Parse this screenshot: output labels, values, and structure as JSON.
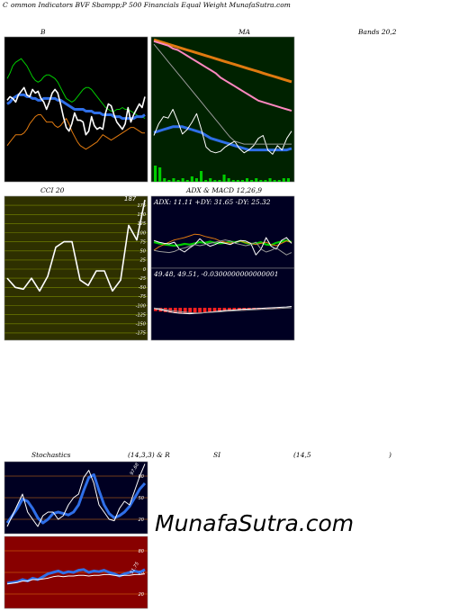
{
  "header": {
    "c_letter": "C",
    "title": "ommon  Indicators BVF Sbampp;P 500  Financials Equal Weight MunafaSutra.com"
  },
  "watermark": "MunafaSutra.com",
  "colors": {
    "panel_black": "#000000",
    "panel_green": "#002200",
    "panel_navy": "#000022",
    "panel_olive": "#2e3000",
    "panel_red": "#880000",
    "white": "#ffffff",
    "green": "#00cc00",
    "blue": "#2f6fe8",
    "orange": "#e07a10",
    "pink": "#ff88c0",
    "red": "#ff2020"
  },
  "chart_data": [
    {
      "id": "bbands",
      "type": "line",
      "title_left": "B",
      "title_right": "Bands 20,2",
      "x": [
        1,
        2,
        3,
        4,
        5,
        6,
        7,
        8,
        9,
        10,
        11,
        12,
        13,
        14,
        15,
        16,
        17,
        18,
        19,
        20,
        21,
        22,
        23,
        24,
        25,
        26,
        27,
        28,
        29,
        30,
        31,
        32,
        33,
        34,
        35,
        36,
        37,
        38,
        39,
        40,
        41,
        42,
        43,
        44,
        45,
        46,
        47,
        48,
        49,
        50
      ],
      "series": [
        {
          "role": "upper",
          "color": "green",
          "values": [
            57,
            60,
            64,
            66,
            67,
            68,
            66,
            64,
            61,
            58,
            56,
            55,
            56,
            58,
            59,
            59,
            58,
            57,
            55,
            52,
            49,
            46,
            45,
            44,
            45,
            47,
            49,
            51,
            52,
            52,
            51,
            49,
            47,
            45,
            43,
            41,
            40,
            39,
            39,
            40,
            40,
            41,
            40,
            40,
            39,
            38,
            37,
            36,
            36,
            35
          ]
        },
        {
          "role": "middle",
          "color": "blue",
          "values": [
            43,
            44,
            46,
            47,
            48,
            48,
            48,
            47,
            47,
            46,
            46,
            45,
            45,
            46,
            46,
            46,
            46,
            46,
            45,
            45,
            44,
            43,
            42,
            41,
            40,
            40,
            40,
            40,
            39,
            39,
            39,
            38,
            38,
            38,
            37,
            37,
            37,
            37,
            36,
            36,
            36,
            35,
            35,
            35,
            35,
            35,
            36,
            36,
            36,
            37
          ]
        },
        {
          "role": "lower",
          "color": "orange",
          "values": [
            20,
            22,
            24,
            26,
            26,
            26,
            27,
            29,
            32,
            34,
            36,
            37,
            37,
            35,
            33,
            33,
            33,
            31,
            30,
            31,
            33,
            35,
            32,
            28,
            25,
            22,
            20,
            19,
            18,
            19,
            20,
            21,
            22,
            24,
            26,
            25,
            24,
            23,
            24,
            25,
            26,
            27,
            28,
            29,
            30,
            30,
            29,
            28,
            27,
            27
          ]
        },
        {
          "role": "close",
          "color": "white",
          "values": [
            45,
            47,
            46,
            44,
            48,
            50,
            52,
            48,
            47,
            51,
            49,
            50,
            46,
            44,
            40,
            44,
            49,
            51,
            49,
            43,
            36,
            30,
            28,
            32,
            38,
            34,
            34,
            33,
            26,
            28,
            36,
            31,
            29,
            30,
            29,
            38,
            43,
            42,
            37,
            33,
            31,
            29,
            32,
            41,
            33,
            37,
            40,
            43,
            41,
            47
          ]
        }
      ],
      "ylim": [
        0,
        80
      ]
    },
    {
      "id": "ma",
      "type": "line",
      "title": "MA",
      "ylim": [
        0,
        100
      ],
      "series": [
        {
          "color": "orange",
          "values": [
            98,
            97,
            96,
            95,
            94,
            93,
            92,
            91,
            90,
            89,
            88,
            87,
            86,
            85,
            84,
            83,
            82,
            81,
            80,
            79,
            78,
            77,
            76,
            75,
            74,
            73,
            72,
            71,
            70,
            69
          ]
        },
        {
          "color": "pink",
          "values": [
            97,
            96,
            95,
            94,
            92,
            91,
            89,
            87,
            85,
            83,
            81,
            79,
            77,
            75,
            72,
            70,
            68,
            66,
            64,
            62,
            60,
            58,
            56,
            55,
            54,
            53,
            52,
            51,
            50,
            49
          ]
        },
        {
          "color": "blue",
          "values": [
            34,
            35,
            36,
            37,
            38,
            38,
            38,
            37,
            36,
            35,
            34,
            32,
            30,
            29,
            28,
            27,
            26,
            25,
            24,
            23,
            22,
            22,
            22,
            22,
            22,
            22,
            22,
            22,
            22,
            23
          ]
        },
        {
          "color": "white",
          "values": [
            32,
            40,
            45,
            44,
            50,
            42,
            33,
            36,
            41,
            47,
            36,
            24,
            21,
            20,
            21,
            24,
            26,
            28,
            23,
            20,
            22,
            25,
            30,
            32,
            22,
            19,
            25,
            22,
            30,
            35
          ]
        },
        {
          "color": "gray",
          "values": [
            95,
            91,
            87,
            83,
            79,
            75,
            71,
            67,
            63,
            59,
            55,
            51,
            47,
            43,
            39,
            35,
            31,
            28,
            27,
            26,
            26,
            26,
            26,
            26,
            26,
            26,
            26,
            26,
            26,
            26
          ]
        }
      ],
      "volume": [
        9,
        8,
        2,
        1,
        2,
        1,
        2,
        1,
        3,
        2,
        6,
        1,
        2,
        1,
        1,
        4,
        2,
        1,
        1,
        1,
        2,
        1,
        2,
        1,
        1,
        2,
        1,
        1,
        2,
        2
      ]
    },
    {
      "id": "cci",
      "type": "line",
      "title": "CCI 20",
      "last_label": "187",
      "ticks": [
        "175",
        "150",
        "125",
        "100",
        "75",
        "50",
        "25",
        "0",
        "-25",
        "-50",
        "-75",
        "-100",
        "-125",
        "-150",
        "-175"
      ],
      "tick_values": [
        175,
        150,
        125,
        100,
        75,
        50,
        25,
        0,
        -25,
        -50,
        -75,
        -100,
        -125,
        -150,
        -175
      ],
      "ylim": [
        -195,
        200
      ],
      "values": [
        -25,
        -50,
        -55,
        -25,
        -60,
        -20,
        60,
        75,
        75,
        -30,
        -45,
        -5,
        -5,
        -60,
        -30,
        120,
        80,
        190
      ]
    },
    {
      "id": "adx",
      "type": "line",
      "title": "ADX  & MACD 12,26,9",
      "stats": "ADX: 11.11  +DY: 31.65 -DY: 25.32",
      "ylim": [
        0,
        100
      ],
      "series": [
        {
          "color": "green",
          "values": [
            42,
            40,
            38,
            37,
            36,
            37,
            39,
            38,
            40,
            42,
            41,
            43,
            41,
            40,
            41,
            43,
            42,
            44,
            41,
            39,
            40,
            42,
            38,
            37,
            41,
            43,
            45,
            42
          ]
        },
        {
          "color": "orange",
          "values": [
            28,
            34,
            38,
            42,
            46,
            48,
            50,
            53,
            56,
            55,
            52,
            50,
            48,
            44,
            42,
            40,
            42,
            44,
            41,
            40,
            38,
            40,
            42,
            38,
            36,
            40,
            44,
            42
          ]
        },
        {
          "color": "white",
          "values": [
            45,
            42,
            40,
            39,
            42,
            30,
            25,
            32,
            38,
            48,
            40,
            35,
            38,
            42,
            40,
            38,
            42,
            45,
            44,
            40,
            20,
            30,
            50,
            35,
            30,
            45,
            50,
            40
          ]
        },
        {
          "color": "gray",
          "values": [
            28,
            26,
            25,
            24,
            26,
            30,
            32,
            35,
            38,
            36,
            38,
            40,
            42,
            44,
            46,
            44,
            40,
            38,
            36,
            38,
            42,
            30,
            25,
            28,
            32,
            26,
            20,
            24
          ]
        }
      ]
    },
    {
      "id": "macd",
      "type": "bar",
      "stats": "49.48,  49.51,  -0.0300000000000001",
      "ylim": [
        -100,
        100
      ],
      "histogram": [
        -12,
        -14,
        -16,
        -18,
        -20,
        -21,
        -22,
        -22,
        -21,
        -20,
        -19,
        -18,
        -16,
        -15,
        -14,
        -12,
        -11,
        -10,
        -8,
        -7,
        -6,
        -5,
        -4,
        -3,
        -2,
        -2,
        -1,
        0
      ],
      "macd_line": [
        -2,
        -6,
        -10,
        -14,
        -18,
        -20,
        -21,
        -22,
        -21,
        -20,
        -18,
        -16,
        -14,
        -12,
        -10,
        -9,
        -8,
        -6,
        -5,
        -4,
        -3,
        -2,
        -1,
        0,
        1,
        2,
        3,
        5
      ],
      "signal_line": [
        -1,
        -3,
        -6,
        -9,
        -12,
        -14,
        -16,
        -18,
        -19,
        -19,
        -18,
        -17,
        -16,
        -15,
        -13,
        -12,
        -11,
        -10,
        -9,
        -8,
        -7,
        -6,
        -5,
        -4,
        -3,
        -2,
        -1,
        0
      ]
    },
    {
      "id": "stoch",
      "type": "line",
      "title_left": "Stochastics",
      "title_mid": "(14,3,3) & R",
      "last_label": "97.68",
      "ticks": [
        "80",
        "50",
        "20"
      ],
      "tick_values": [
        80,
        50,
        20
      ],
      "ylim": [
        0,
        100
      ],
      "series": [
        {
          "color": "blue",
          "values": [
            15,
            25,
            35,
            48,
            45,
            35,
            22,
            15,
            20,
            28,
            30,
            28,
            26,
            30,
            40,
            60,
            78,
            82,
            60,
            40,
            28,
            22,
            25,
            30,
            38,
            50,
            62,
            70
          ]
        },
        {
          "color": "white",
          "values": [
            10,
            25,
            40,
            55,
            30,
            20,
            10,
            25,
            30,
            30,
            20,
            25,
            40,
            50,
            55,
            78,
            88,
            70,
            40,
            30,
            20,
            18,
            35,
            45,
            40,
            60,
            80,
            97
          ]
        }
      ]
    },
    {
      "id": "rsi",
      "type": "line",
      "title_left": "SI",
      "title_right": "(14,5",
      "title_end": ")",
      "last_label": "51.75",
      "ticks": [
        "80",
        "50",
        "20"
      ],
      "tick_values": [
        80,
        50,
        20
      ],
      "ylim": [
        0,
        100
      ],
      "series": [
        {
          "color": "blue",
          "values": [
            35,
            36,
            37,
            40,
            38,
            42,
            40,
            44,
            48,
            50,
            52,
            49,
            51,
            50,
            53,
            54,
            50,
            52,
            51,
            53,
            50,
            48,
            45,
            48,
            50,
            52,
            50,
            54
          ]
        },
        {
          "color": "white",
          "values": [
            34,
            35,
            36,
            38,
            38,
            40,
            40,
            41,
            42,
            44,
            45,
            44,
            45,
            45,
            46,
            46,
            45,
            46,
            46,
            47,
            47,
            46,
            45,
            46,
            46,
            47,
            47,
            48
          ]
        }
      ]
    }
  ]
}
